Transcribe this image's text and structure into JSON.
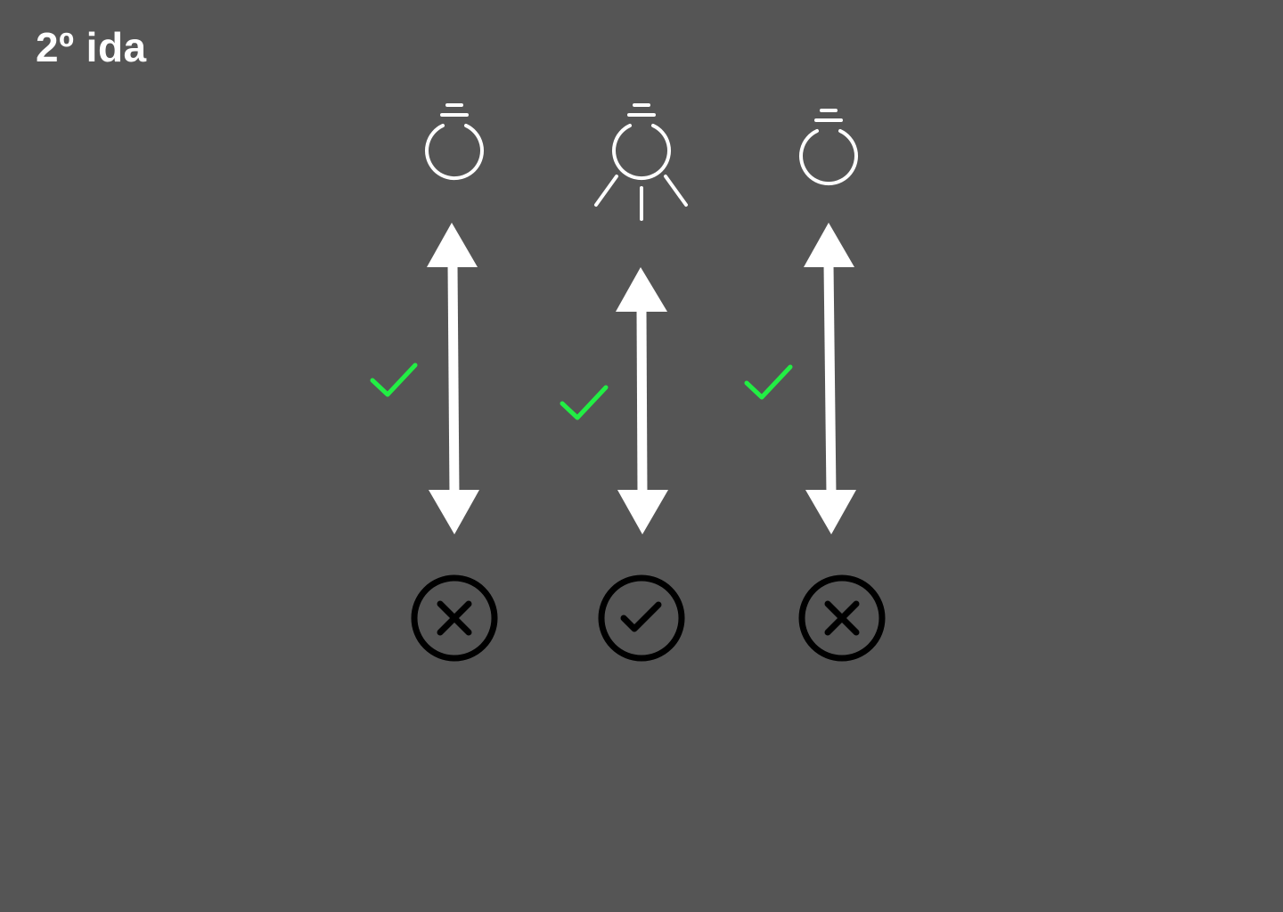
{
  "title": "2º ida",
  "colors": {
    "background": "#555555",
    "foreground": "#ffffff",
    "check_green": "#22ee44",
    "result_stroke": "#000000"
  },
  "columns": [
    {
      "bulb": "bulb-off-icon",
      "bulb_lit": false,
      "arrow": "double-arrow-vertical",
      "connection_check": "check-icon",
      "result": "x-circle-icon",
      "result_ok": false
    },
    {
      "bulb": "bulb-lit-icon",
      "bulb_lit": true,
      "arrow": "double-arrow-vertical",
      "connection_check": "check-icon",
      "result": "check-circle-icon",
      "result_ok": true
    },
    {
      "bulb": "bulb-off-icon",
      "bulb_lit": false,
      "arrow": "double-arrow-vertical",
      "connection_check": "check-icon",
      "result": "x-circle-icon",
      "result_ok": false
    }
  ]
}
